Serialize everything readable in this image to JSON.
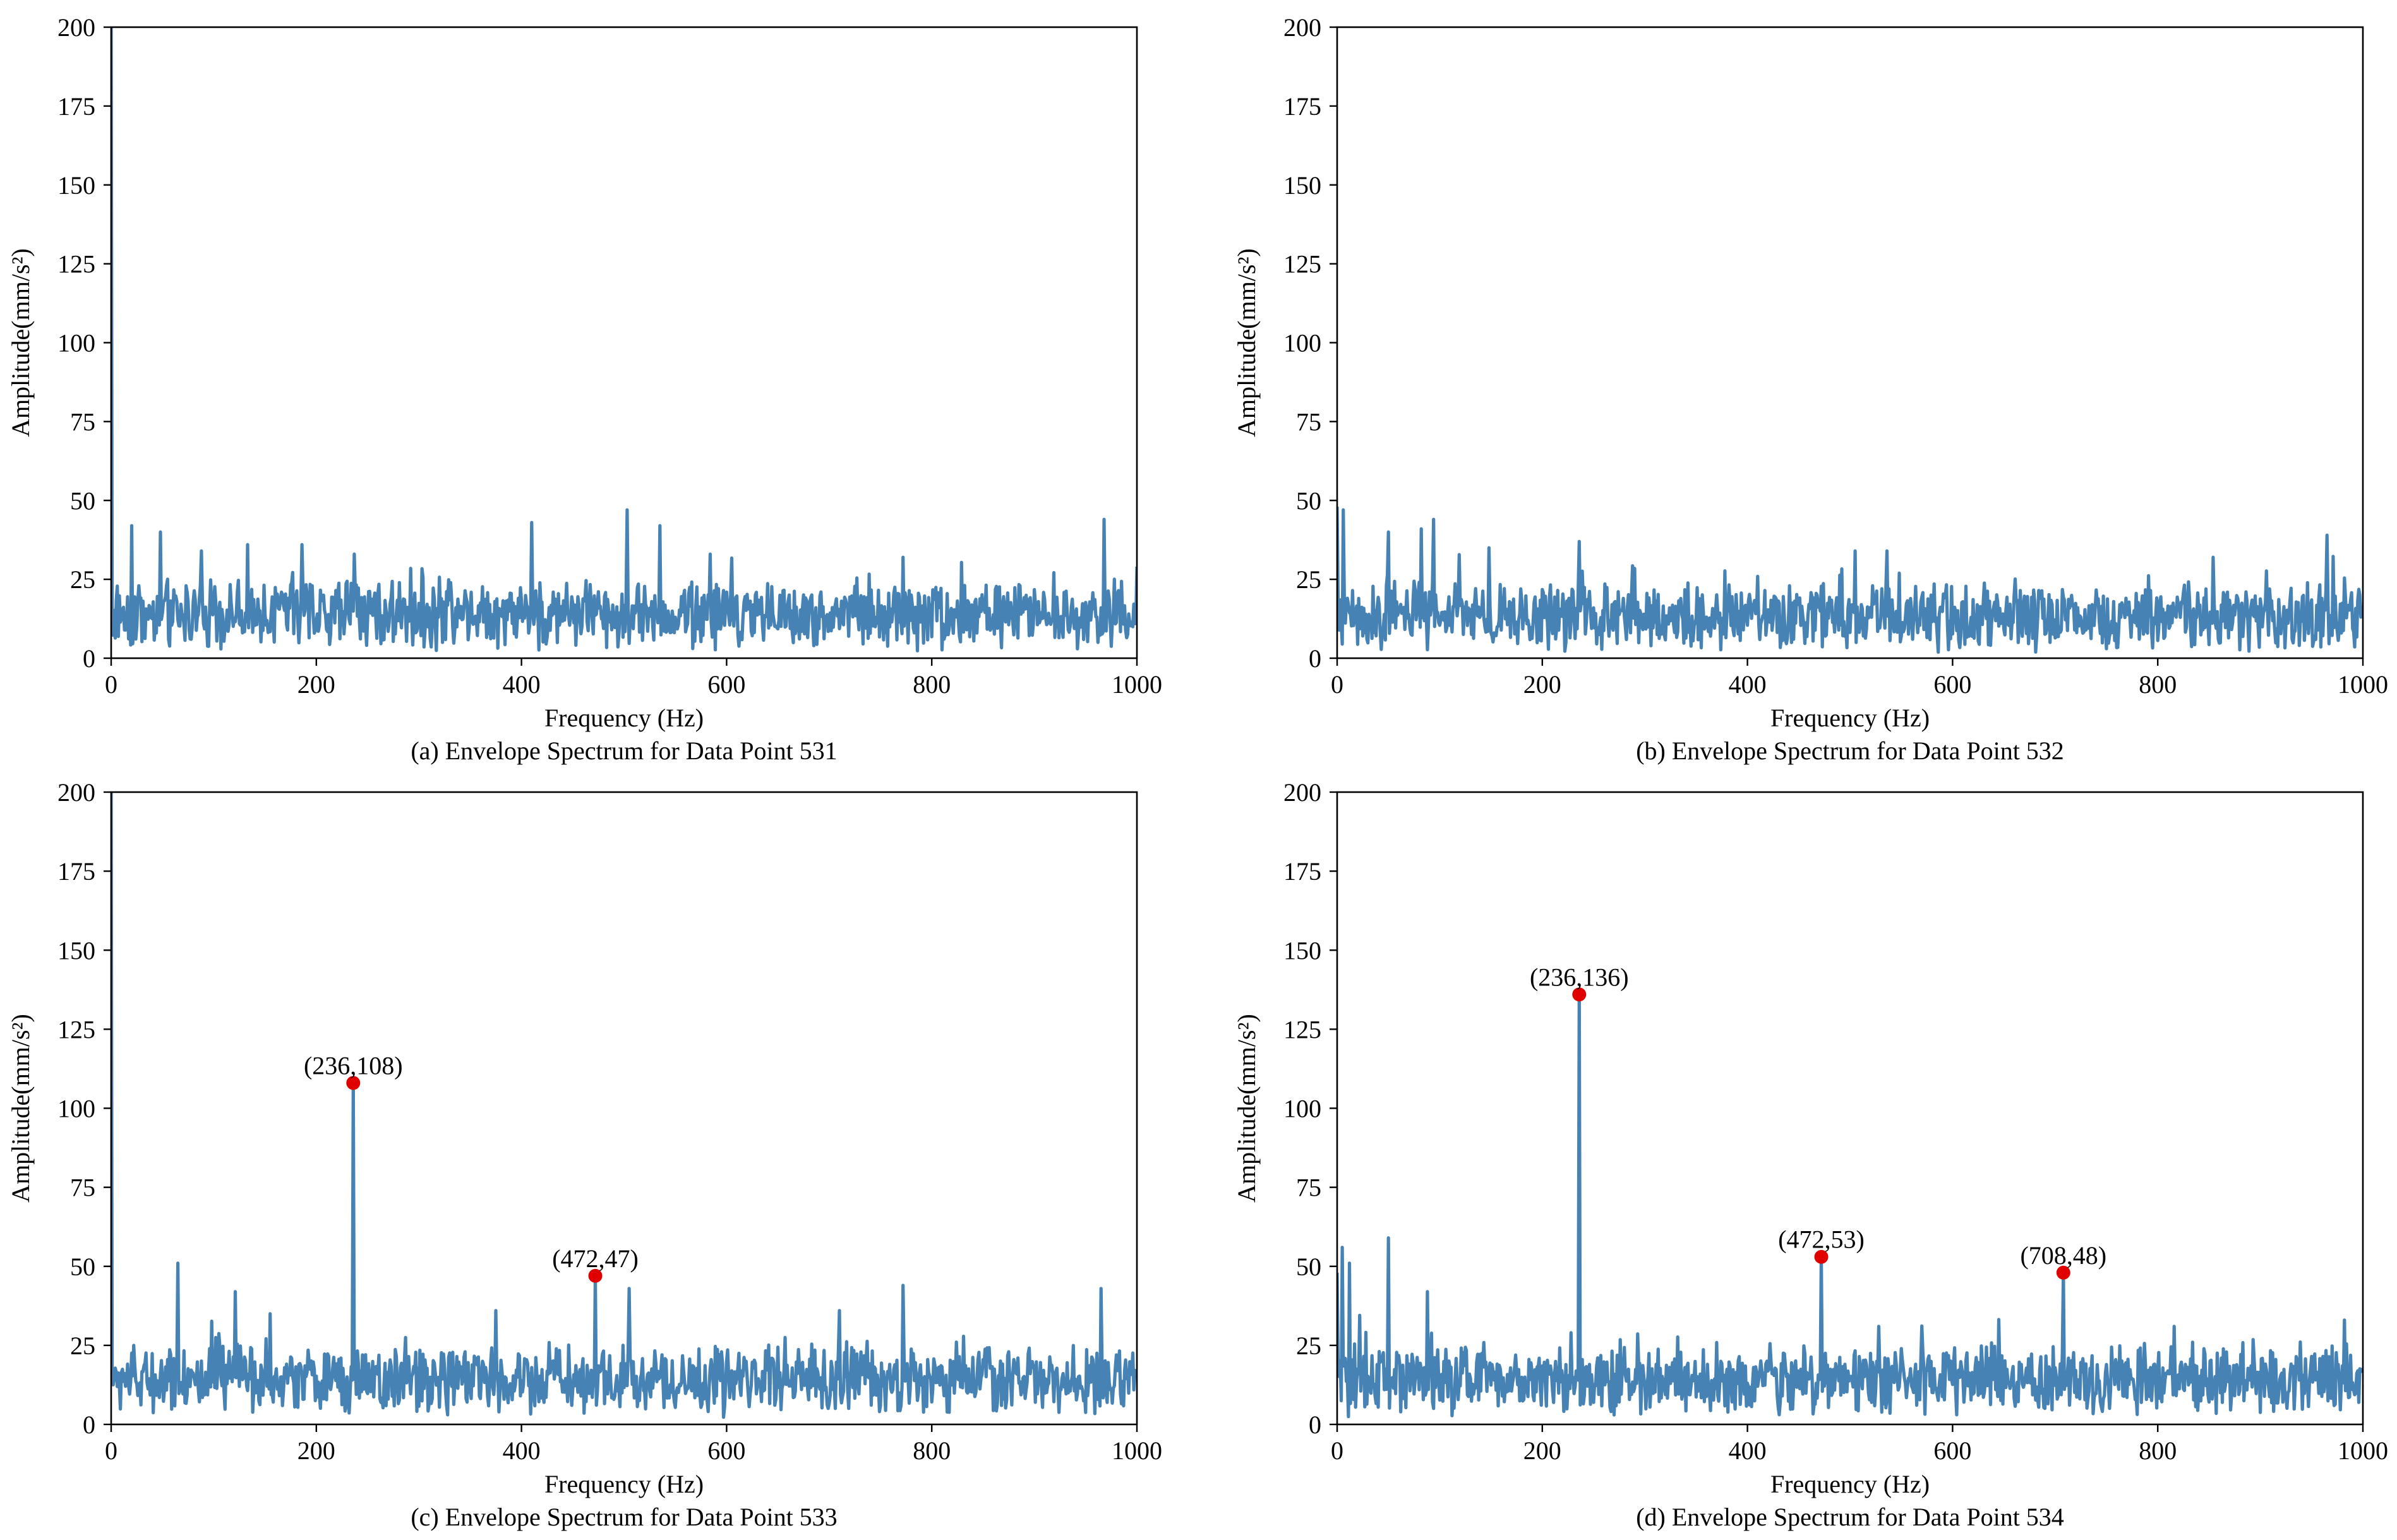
{
  "colors": {
    "series": "#4682b4",
    "peak_marker": "#e00000",
    "axes": "#000000"
  },
  "chart_data": [
    {
      "type": "line",
      "caption": "(a) Envelope Spectrum for Data Point 531",
      "xlabel": "Frequency (Hz)",
      "ylabel": "Amplitude(mm/s²)",
      "xlim": [
        0,
        1000
      ],
      "ylim": [
        0,
        200
      ],
      "xticks": [
        0,
        200,
        400,
        600,
        800,
        1000
      ],
      "yticks": [
        0,
        25,
        50,
        75,
        100,
        125,
        150,
        175,
        200
      ],
      "grid": false,
      "dc_value": 200,
      "noise_base": 14,
      "spikes": [
        [
          20,
          42
        ],
        [
          48,
          40
        ],
        [
          88,
          34
        ],
        [
          133,
          36
        ],
        [
          186,
          36
        ],
        [
          237,
          33
        ],
        [
          410,
          43
        ],
        [
          503,
          47
        ],
        [
          535,
          42
        ],
        [
          584,
          33
        ],
        [
          772,
          32
        ],
        [
          968,
          44
        ],
        [
          1000,
          29
        ]
      ],
      "peaks": []
    },
    {
      "type": "line",
      "caption": "(b) Envelope Spectrum for Data Point 532",
      "xlabel": "Frequency (Hz)",
      "ylabel": "Amplitude(mm/s²)",
      "xlim": [
        0,
        1000
      ],
      "ylim": [
        0,
        200
      ],
      "xticks": [
        0,
        200,
        400,
        600,
        800,
        1000
      ],
      "yticks": [
        0,
        25,
        50,
        75,
        100,
        125,
        150,
        175,
        200
      ],
      "grid": false,
      "dc_value": 48,
      "noise_base": 13,
      "spikes": [
        [
          6,
          47
        ],
        [
          50,
          40
        ],
        [
          82,
          41
        ],
        [
          94,
          44
        ],
        [
          148,
          35
        ],
        [
          236,
          37
        ],
        [
          505,
          34
        ],
        [
          536,
          34
        ],
        [
          854,
          32
        ],
        [
          965,
          39
        ]
      ],
      "peaks": []
    },
    {
      "type": "line",
      "caption": "(c) Envelope Spectrum for Data Point 533",
      "xlabel": "Frequency (Hz)",
      "ylabel": "Amplitude(mm/s²)",
      "xlim": [
        0,
        1000
      ],
      "ylim": [
        0,
        200
      ],
      "xticks": [
        0,
        200,
        400,
        600,
        800,
        1000
      ],
      "yticks": [
        0,
        25,
        50,
        75,
        100,
        125,
        150,
        175,
        200
      ],
      "grid": false,
      "dc_value": 200,
      "noise_base": 14,
      "spikes": [
        [
          65,
          51
        ],
        [
          121,
          42
        ],
        [
          155,
          35
        ],
        [
          236,
          108
        ],
        [
          375,
          36
        ],
        [
          472,
          47
        ],
        [
          505,
          43
        ],
        [
          710,
          36
        ],
        [
          772,
          44
        ],
        [
          965,
          43
        ]
      ],
      "peaks": [
        {
          "x": 236,
          "y": 108,
          "label": "(236,108)"
        },
        {
          "x": 472,
          "y": 47,
          "label": "(472,47)"
        }
      ]
    },
    {
      "type": "line",
      "caption": "(d) Envelope Spectrum for Data Point 534",
      "xlabel": "Frequency (Hz)",
      "ylabel": "Amplitude(mm/s²)",
      "xlim": [
        0,
        1000
      ],
      "ylim": [
        0,
        200
      ],
      "xticks": [
        0,
        200,
        400,
        600,
        800,
        1000
      ],
      "yticks": [
        0,
        25,
        50,
        75,
        100,
        125,
        150,
        175,
        200
      ],
      "grid": false,
      "dc_value": 48,
      "noise_base": 14,
      "spikes": [
        [
          5,
          56
        ],
        [
          12,
          51
        ],
        [
          50,
          59
        ],
        [
          88,
          42
        ],
        [
          236,
          136
        ],
        [
          472,
          53
        ],
        [
          528,
          31
        ],
        [
          708,
          48
        ],
        [
          816,
          31
        ],
        [
          982,
          33
        ]
      ],
      "peaks": [
        {
          "x": 236,
          "y": 136,
          "label": "(236,136)"
        },
        {
          "x": 472,
          "y": 53,
          "label": "(472,53)"
        },
        {
          "x": 708,
          "y": 48,
          "label": "(708,48)"
        }
      ]
    }
  ]
}
